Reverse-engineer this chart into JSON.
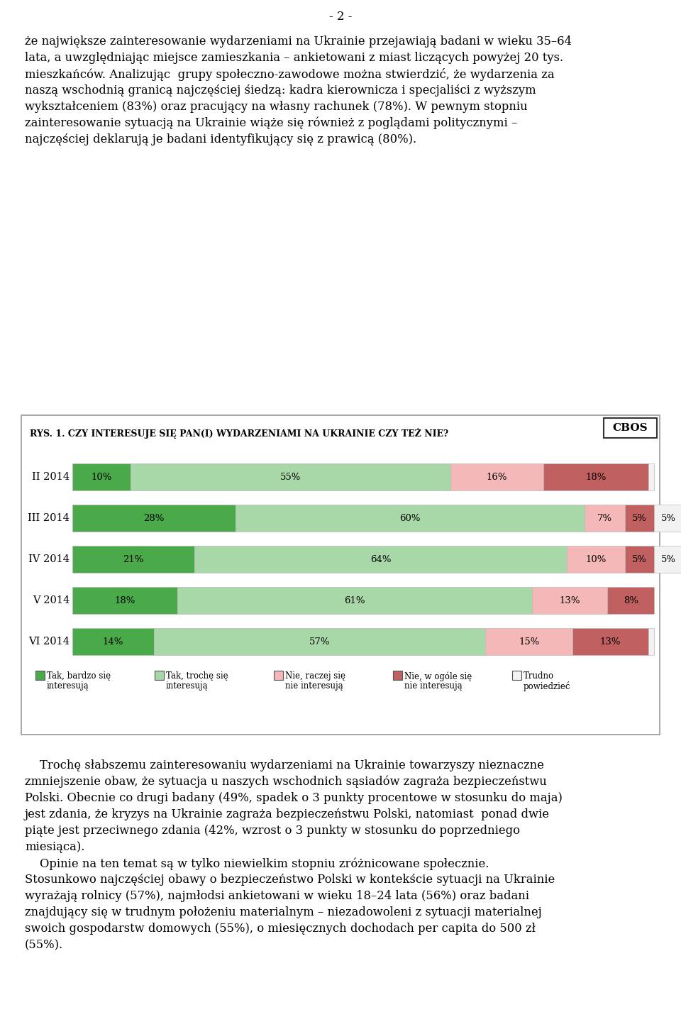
{
  "page_header": "- 2 -",
  "title": "RYS. 1. CZY INTERESUJE SIĘ PAN(I) WYDARZENIAMI NA UKRAINIE CZY TEŻ NIE?",
  "cbos_label": "CBOS",
  "rows": [
    "II 2014",
    "III 2014",
    "IV 2014",
    "V 2014",
    "VI 2014"
  ],
  "segments": [
    {
      "label": "Tak, bardzo się\ninteresuję",
      "color": "#4aaa4a",
      "values": [
        10,
        28,
        21,
        18,
        14
      ]
    },
    {
      "label": "Tak, trochę się\ninteresuję",
      "color": "#a8d8a8",
      "values": [
        55,
        60,
        64,
        61,
        57
      ]
    },
    {
      "label": "Nie, raczej się\nnie interesuję",
      "color": "#f4b8b8",
      "values": [
        16,
        7,
        10,
        13,
        15
      ]
    },
    {
      "label": "Nie, w ogóle się\nnie interesuję",
      "color": "#c06060",
      "values": [
        18,
        5,
        5,
        8,
        13
      ]
    },
    {
      "label": "Trudno\npowiedzieć",
      "color": "#f2f2f2",
      "values": [
        1,
        5,
        5,
        0,
        1
      ]
    }
  ],
  "lines_top": [
    "że największe zainteresowanie wydarzeniami na Ukrainie przejawiają badani w wieku 35–64",
    "lata, a uwzględniając miejsce zamieszkania – ankietowani z miast liczących powyżej 20 tys.",
    "mieszkańców. Analizując  grupy społeczno-zawodowe można stwierdzić, że wydarzenia za",
    "naszą wschodnią granicą najczęściej śiedzą: kadra kierownicza i specjaliści z wyższym",
    "wykształceniem (83%) oraz pracujący na własny rachunek (78%). W pewnym stopniu",
    "zainteresowanie sytuacją na Ukrainie wiąże się również z poglądami politycznymi –",
    "najczęściej deklarują je badani identyfikujący się z prawicą (80%)."
  ],
  "lines_bottom": [
    "    Trochę słabszemu zainteresowaniu wydarzeniami na Ukrainie towarzyszy nieznaczne",
    "zmniejszenie obaw, że sytuacja u naszych wschodnich sąsiadów zagraża bezpieczeństwu",
    "Polski. Obecnie co drugi badany (49%, spadek o 3 punkty procentowe w stosunku do maja)",
    "jest zdania, że kryzys na Ukrainie zagraża bezpieczeństwu Polski, natomiast  ponad dwie",
    "piąte jest przeciwnego zdania (42%, wzrost o 3 punkty w stosunku do poprzedniego",
    "miesiąca).",
    "    Opinie na ten temat są w tylko niewielkim stopniu zróżnicowane społecznie.",
    "Stosunkowo najczęściej obawy o bezpieczeństwo Polski w kontekście sytuacji na Ukrainie",
    "wyrażają rolnicy (57%), najmłodsi ankietowani w wieku 18–24 lata (56%) oraz badani",
    "znajdujący się w trudnym położeniu materialnym – niezadowoleni z sytuacji materialnej",
    "swoich gospodarstw domowych (55%), o miesięcznych dochodach per capita do 500 zł",
    "(55%)."
  ],
  "background": "#ffffff"
}
